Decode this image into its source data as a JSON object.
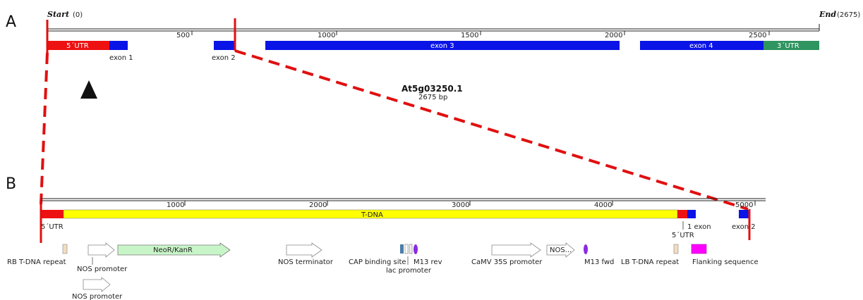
{
  "panel_a": {
    "label": "A",
    "start_label": "Start",
    "start_value": "(0)",
    "end_label": "End",
    "end_value": "(2675)",
    "ticks": [
      "500",
      "1000",
      "1500",
      "2000",
      "2500"
    ],
    "features": {
      "utr5": "5´UTR",
      "exon1": "exon 1",
      "exon2": "exon 2",
      "exon3": "exon 3",
      "exon4": "exon 4",
      "utr3": "3´UTR"
    },
    "gene_name": "At5g03250.1",
    "gene_size": "2675 bp",
    "colors": {
      "utr5": "#ee1111",
      "exon": "#0a14e6",
      "utr3": "#2e9460"
    }
  },
  "panel_b": {
    "label": "B",
    "ticks": [
      "1000",
      "2000",
      "3000",
      "4000",
      "5000"
    ],
    "tdna_label": "T-DNA",
    "utr5_left": "5´UTR",
    "utr5_right": "5´UTR",
    "exon1": "1 exon",
    "exon2": "exon 2",
    "elements": {
      "rb_repeat": "RB T-DNA repeat",
      "nos_promoter_1": "NOS promoter",
      "nos_promoter_2": "NOS promoter",
      "neor": "NeoR/KanR",
      "nos_terminator": "NOS terminator",
      "cap_site": "CAP binding site",
      "lac_promoter": "lac promoter",
      "m13_rev": "M13 rev",
      "camv": "CaMV 35S promoter",
      "nos_short": "NOS...",
      "m13_fwd": "M13 fwd",
      "lb_repeat": "LB T-DNA repeat",
      "flanking": "Flanking sequence"
    },
    "colors": {
      "tdna": "#ffff00",
      "neor": "#c8f5c8",
      "flanking": "#ff00ff",
      "m13": "#8a2be2",
      "repeat": "#f2dcc0"
    }
  },
  "insertion_marker": "triangle-marker-icon"
}
